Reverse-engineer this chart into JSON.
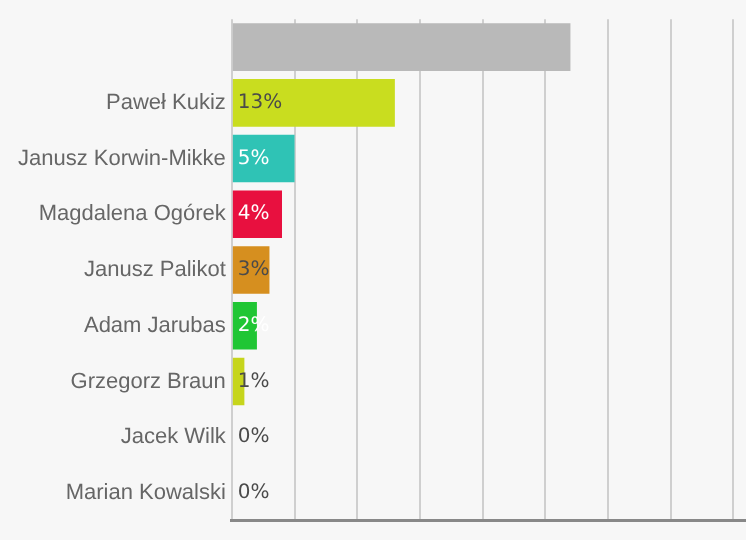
{
  "chart_data": {
    "type": "bar",
    "orientation": "horizontal",
    "categories": [
      null,
      "Paweł Kukiz",
      "Janusz Korwin-Mikke",
      "Magdalena Ogórek",
      "Janusz Palikot",
      "Adam Jarubas",
      "Grzegorz Braun",
      "Jacek Wilk",
      "Marian Kowalski"
    ],
    "values": [
      27,
      13,
      5,
      4,
      3,
      2,
      1,
      0,
      0
    ],
    "colors": [
      "#b9b9b9",
      "#c9dd1f",
      "#2fc3b5",
      "#e8103f",
      "#d68f1f",
      "#20c634",
      "#c6d51c",
      "#bdbdbd",
      "#bdbdbd"
    ],
    "value_labels": [
      null,
      "13%",
      "5%",
      "4%",
      "3%",
      "2%",
      "1%",
      "0%",
      "0%"
    ],
    "xlim": [
      0,
      41
    ],
    "xticks": [
      {
        "value": 0,
        "label": null
      },
      {
        "value": 5,
        "label": null
      },
      {
        "value": 10,
        "label": null
      },
      {
        "value": 15,
        "label": null
      },
      {
        "value": 20,
        "label": null
      },
      {
        "value": 25,
        "label": null
      },
      {
        "value": 30,
        "label": null
      },
      {
        "value": 35,
        "label": null
      },
      {
        "value": 40,
        "label": null
      }
    ],
    "grid": "x"
  }
}
